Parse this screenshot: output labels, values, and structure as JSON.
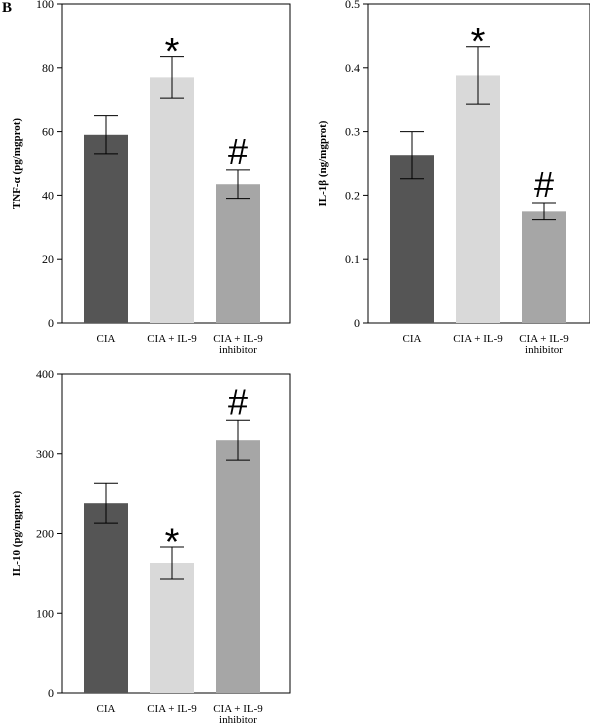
{
  "panel_letter": "B",
  "chart_data": [
    {
      "type": "bar",
      "ylabel": "TNF-α (pg/mgprot)",
      "ylim": [
        0,
        100
      ],
      "yticks": [
        "0",
        "20",
        "40",
        "60",
        "80",
        "100"
      ],
      "categories": [
        [
          "CIA"
        ],
        [
          "CIA + IL-9"
        ],
        [
          "CIA + IL-9",
          "inhibitor"
        ]
      ],
      "values": [
        59,
        77,
        43.5
      ],
      "errors": [
        6,
        6.5,
        4.5
      ],
      "annotations": [
        "",
        "*",
        "#"
      ],
      "colors": [
        "#555555",
        "#d9d9d9",
        "#a6a6a6"
      ]
    },
    {
      "type": "bar",
      "ylabel": "IL-1β (ng/mgprot)",
      "ylim": [
        0,
        0.5
      ],
      "yticks": [
        "0",
        "0.1",
        "0.2",
        "0.3",
        "0.4",
        "0.5"
      ],
      "categories": [
        [
          "CIA"
        ],
        [
          "CIA + IL-9"
        ],
        [
          "CIA + IL-9",
          "inhibitor"
        ]
      ],
      "values": [
        0.263,
        0.388,
        0.175
      ],
      "errors": [
        0.037,
        0.045,
        0.013
      ],
      "annotations": [
        "",
        "*",
        "#"
      ],
      "colors": [
        "#555555",
        "#d9d9d9",
        "#a6a6a6"
      ]
    },
    {
      "type": "bar",
      "ylabel": "IL-10 (pg/mgprot)",
      "ylim": [
        0,
        400
      ],
      "yticks": [
        "0",
        "100",
        "200",
        "300",
        "400"
      ],
      "categories": [
        [
          "CIA"
        ],
        [
          "CIA + IL-9"
        ],
        [
          "CIA + IL-9",
          "inhibitor"
        ]
      ],
      "values": [
        238,
        163,
        317
      ],
      "errors": [
        25,
        20,
        25
      ],
      "annotations": [
        "",
        "*",
        "#"
      ],
      "colors": [
        "#555555",
        "#d9d9d9",
        "#a6a6a6"
      ]
    }
  ]
}
